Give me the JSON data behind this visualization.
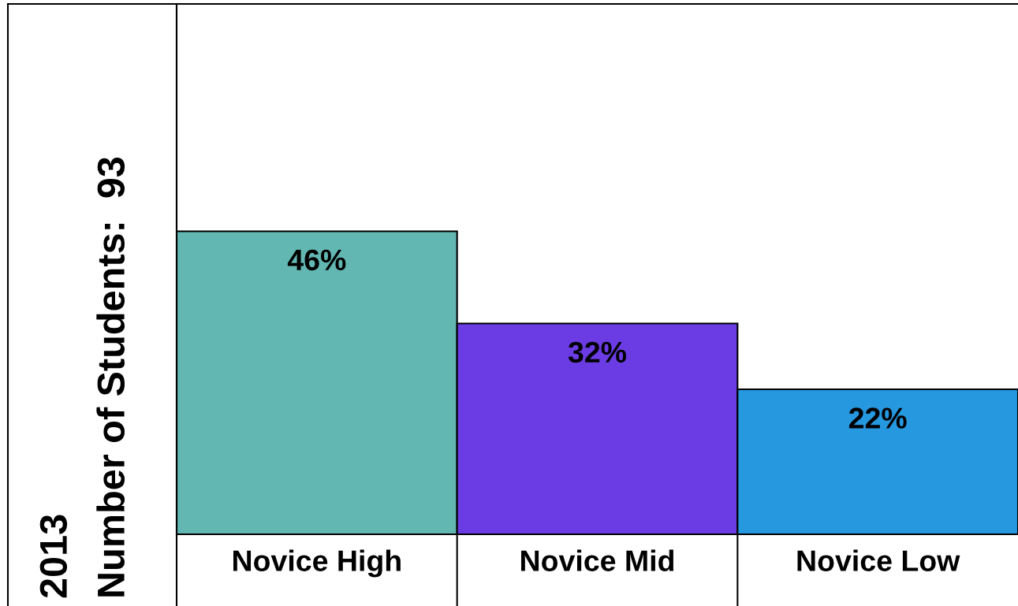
{
  "chart_data": {
    "type": "bar",
    "categories": [
      "Novice High",
      "Novice Mid",
      "Novice Low"
    ],
    "values": [
      46,
      32,
      22
    ],
    "colors": [
      "#62b7b2",
      "#6b3ce3",
      "#2698e0"
    ],
    "value_labels": [
      "46%",
      "32%",
      "22%"
    ],
    "annotations": [
      "2013",
      "Number of Students:  93"
    ],
    "grid": false,
    "legend": false
  }
}
